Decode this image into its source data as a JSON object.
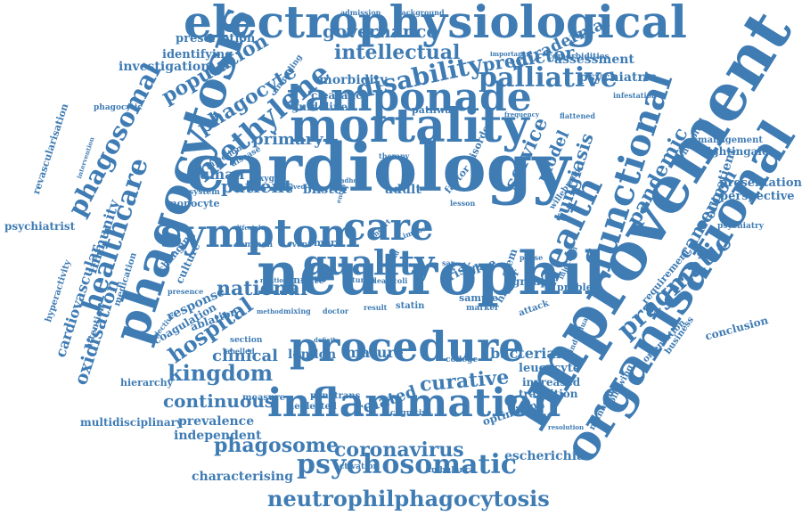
{
  "palette": {
    "word": "#3f7cb4",
    "background": "#ffffff"
  },
  "words": [
    "electrophysiological",
    "cardiology",
    "neutrophil",
    "improvement",
    "organisational",
    "mortality",
    "phagocytosis",
    "inflammation",
    "procedure",
    "tamponade",
    "symptom",
    "functional",
    "health",
    "quality",
    "care",
    "methylene",
    "palliative",
    "disability",
    "psychosomatic",
    "neutrophilphagocytosis",
    "healthcare",
    "phagosomal",
    "pragmatic",
    "kingdom",
    "coronavirus",
    "phagosome",
    "intellectual",
    "governance",
    "population",
    "phagocyte",
    "national",
    "predictor",
    "curative",
    "continuous",
    "hospital",
    "service",
    "intradermal",
    "tungiasis",
    "pandemic",
    "cameroon",
    "model",
    "oxidisation",
    "patient",
    "primary",
    "human",
    "clinical",
    "london",
    "mature",
    "bacterial",
    "related",
    "immunity",
    "cardiovascular",
    "escherichia",
    "characterising",
    "multidisciplinary",
    "prevalence",
    "independent",
    "morbidity",
    "guideline",
    "psychiatric",
    "assessment",
    "investigation",
    "prescription",
    "identifying",
    "response",
    "coagulation",
    "ablation",
    "blister",
    "adult",
    "blue",
    "risk",
    "leucocyte",
    "increased",
    "transition",
    "optimising",
    "outpatient",
    "presentation",
    "perspective",
    "nightingale",
    "management",
    "conclusion",
    "psychiatrist",
    "revascularisation",
    "hyperactivity",
    "attention",
    "medication",
    "changing",
    "culture",
    "monocyte",
    "system",
    "infection",
    "disease",
    "oxygen",
    "hierarchy",
    "measure",
    "neglected",
    "penetrans",
    "activation",
    "ambulance",
    "cognitive",
    "sample",
    "marker",
    "problem",
    "statin",
    "innate",
    "more",
    "event",
    "common",
    "doctor",
    "mixing",
    "method",
    "section",
    "labelled",
    "presence",
    "objective",
    "infestation",
    "flattened",
    "frequency",
    "pathway",
    "clearance",
    "disorder",
    "factor",
    "lesson",
    "comorbidities",
    "important",
    "admission",
    "background",
    "therapy",
    "unloading",
    "phagocytic",
    "intervention",
    "willebrand",
    "requirement",
    "orientation",
    "business",
    "managing",
    "following",
    "individual",
    "resolution",
    "injection",
    "attack",
    "group",
    "phase",
    "stem",
    "higher",
    "flea",
    "coli",
    "rural",
    "sar",
    "lifestyle",
    "impact",
    "sand",
    "heart",
    "deficit",
    "result",
    "college",
    "tunga",
    "relation",
    "involved",
    "adhd",
    "in-hospital",
    "psychiatry",
    "entity"
  ]
}
